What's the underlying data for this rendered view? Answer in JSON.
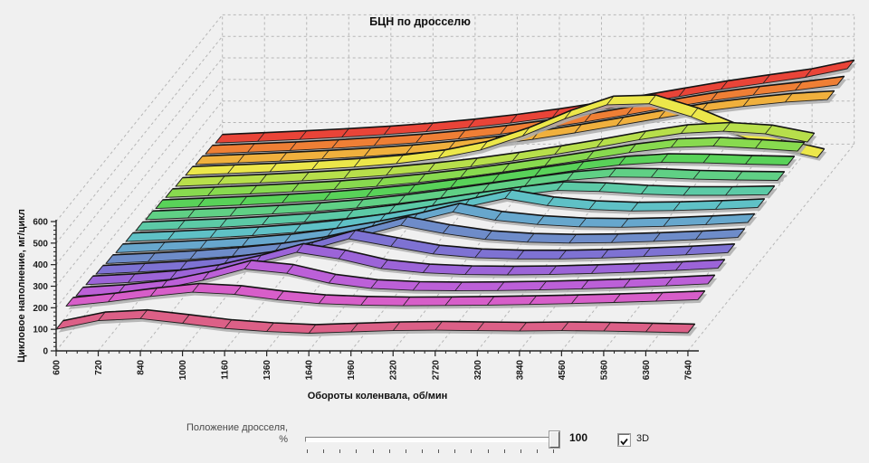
{
  "chart_data": {
    "type": "ribbon3d",
    "title": "БЦН по дросселю",
    "xlabel": "Обороты коленвала, об/мин",
    "ylabel": "Цикловое наполнение, мг/цикл",
    "x_tick_labels": [
      "600",
      "720",
      "840",
      "1000",
      "1160",
      "1360",
      "1640",
      "1960",
      "2320",
      "2720",
      "3200",
      "3840",
      "4560",
      "5360",
      "6360",
      "7640"
    ],
    "y_ticks": [
      0,
      100,
      200,
      300,
      400,
      500,
      600
    ],
    "ylim": [
      0,
      600
    ],
    "grid": "dashed",
    "legend": "none",
    "series_order": "front_to_back",
    "series_front_to_back": [
      {
        "color": "#dc6087",
        "values": [
          100,
          140,
          150,
          128,
          104,
          90,
          82,
          88,
          94,
          96,
          94,
          92,
          94,
          92,
          88,
          84
        ]
      },
      {
        "color": "#d75ec9",
        "values": [
          150,
          170,
          195,
          215,
          205,
          180,
          162,
          155,
          152,
          153,
          155,
          158,
          162,
          167,
          173,
          180
        ]
      },
      {
        "color": "#bc60d8",
        "values": [
          140,
          152,
          172,
          212,
          265,
          245,
          200,
          175,
          166,
          164,
          165,
          168,
          173,
          179,
          187,
          196
        ]
      },
      {
        "color": "#9c64d8",
        "values": [
          135,
          145,
          160,
          187,
          232,
          285,
          255,
          210,
          190,
          182,
          180,
          182,
          187,
          193,
          201,
          211
        ]
      },
      {
        "color": "#7e72d3",
        "values": [
          126,
          136,
          147,
          163,
          190,
          235,
          290,
          255,
          220,
          203,
          197,
          197,
          201,
          208,
          216,
          226
        ]
      },
      {
        "color": "#6e8cc9",
        "values": [
          118,
          127,
          138,
          152,
          171,
          200,
          243,
          295,
          258,
          230,
          217,
          213,
          215,
          221,
          229,
          239
        ]
      },
      {
        "color": "#67a7cd",
        "values": [
          111,
          120,
          129,
          141,
          157,
          181,
          214,
          252,
          300,
          262,
          242,
          231,
          229,
          233,
          241,
          251
        ]
      },
      {
        "color": "#5fc1c6",
        "values": [
          105,
          113,
          122,
          133,
          147,
          167,
          193,
          226,
          262,
          305,
          272,
          254,
          247,
          249,
          255,
          263
        ]
      },
      {
        "color": "#5ccaa6",
        "values": [
          98,
          106,
          114,
          125,
          138,
          155,
          178,
          205,
          235,
          262,
          285,
          280,
          268,
          262,
          262,
          265
        ]
      },
      {
        "color": "#60d085",
        "values": [
          92,
          100,
          108,
          118,
          130,
          146,
          167,
          192,
          220,
          248,
          274,
          290,
          288,
          280,
          276,
          274
        ]
      },
      {
        "color": "#59d259",
        "values": [
          86,
          94,
          102,
          112,
          124,
          139,
          158,
          182,
          208,
          236,
          264,
          288,
          300,
          298,
          292,
          288
        ]
      },
      {
        "color": "#88da4f",
        "values": [
          80,
          88,
          96,
          106,
          117,
          131,
          150,
          172,
          198,
          226,
          256,
          288,
          312,
          318,
          308,
          295
        ]
      },
      {
        "color": "#b7df4b",
        "values": [
          74,
          82,
          90,
          100,
          111,
          125,
          143,
          165,
          192,
          222,
          255,
          290,
          320,
          330,
          318,
          280
        ]
      },
      {
        "color": "#ece74a",
        "values": [
          68,
          76,
          84,
          94,
          106,
          122,
          146,
          185,
          250,
          330,
          395,
          400,
          340,
          260,
          195,
          150
        ]
      },
      {
        "color": "#f0b03d",
        "values": [
          60,
          68,
          76,
          86,
          97,
          111,
          129,
          151,
          177,
          207,
          240,
          274,
          306,
          330,
          350,
          362
        ]
      },
      {
        "color": "#ef7f35",
        "values": [
          52,
          60,
          68,
          78,
          90,
          104,
          122,
          144,
          170,
          200,
          233,
          267,
          299,
          325,
          347,
          372
        ]
      },
      {
        "color": "#e94438",
        "values": [
          45,
          53,
          62,
          72,
          84,
          98,
          116,
          138,
          164,
          194,
          227,
          261,
          294,
          322,
          350,
          390
        ]
      }
    ]
  },
  "colors": {
    "background": "#f0f0f0",
    "grid": "#b6b6b6",
    "axis": "#222222",
    "ribbon_outline": "#1f1f1f",
    "shadow": "#adadad"
  },
  "controls": {
    "slider_label_line1": "Положение дросселя,",
    "slider_label_line2": "%",
    "slider_value": "100",
    "slider_ticks_count": 16,
    "checkbox_label": "3D",
    "checkbox_checked": true
  }
}
